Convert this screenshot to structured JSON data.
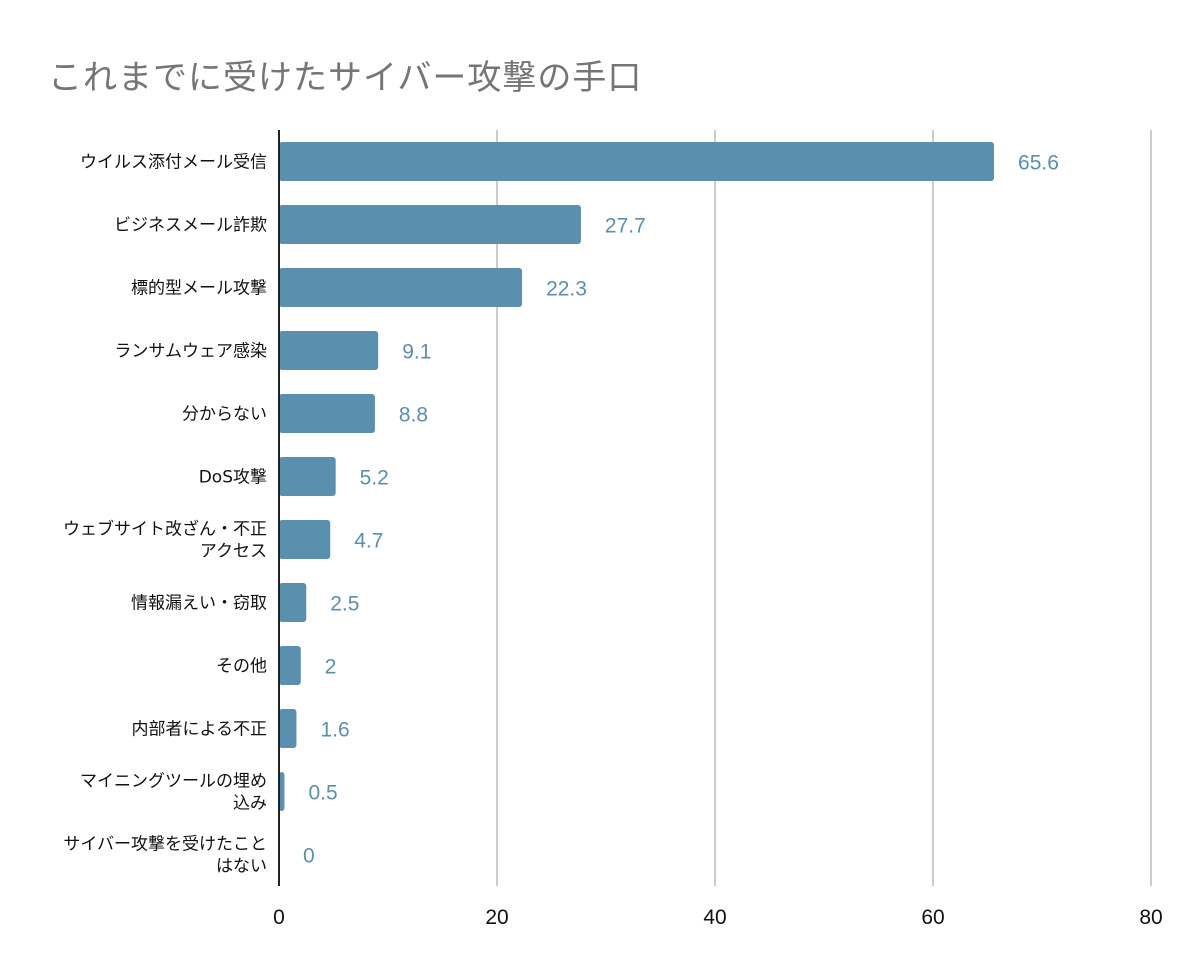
{
  "chart_data": {
    "type": "bar",
    "orientation": "horizontal",
    "title": "これまでに受けたサイバー攻撃の手口",
    "categories": [
      [
        "ウイルス添付メール受信"
      ],
      [
        "ビジネスメール詐欺"
      ],
      [
        "標的型メール攻撃"
      ],
      [
        "ランサムウェア感染"
      ],
      [
        "分からない"
      ],
      [
        "DoS攻撃"
      ],
      [
        "ウェブサイト改ざん・不正",
        "アクセス"
      ],
      [
        "情報漏えい・窃取"
      ],
      [
        "その他"
      ],
      [
        "内部者による不正"
      ],
      [
        "マイニングツールの埋め",
        "込み"
      ],
      [
        "サイバー攻撃を受けたこと",
        "はない"
      ]
    ],
    "values": [
      65.6,
      27.7,
      22.3,
      9.1,
      8.8,
      5.2,
      4.7,
      2.5,
      2,
      1.6,
      0.5,
      0
    ],
    "value_labels": [
      "65.6",
      "27.7",
      "22.3",
      "9.1",
      "8.8",
      "5.2",
      "4.7",
      "2.5",
      "2",
      "1.6",
      "0.5",
      "0"
    ],
    "xlim": [
      0,
      80
    ],
    "xticks": [
      0,
      20,
      40,
      60,
      80
    ],
    "xtick_labels": [
      "0",
      "20",
      "40",
      "60",
      "80"
    ],
    "grid": true,
    "colors": {
      "bar": "#5a8fad",
      "value_label": "#5a8fad",
      "grid": "#cccccc",
      "axis": "#222222",
      "title": "#757575"
    }
  }
}
